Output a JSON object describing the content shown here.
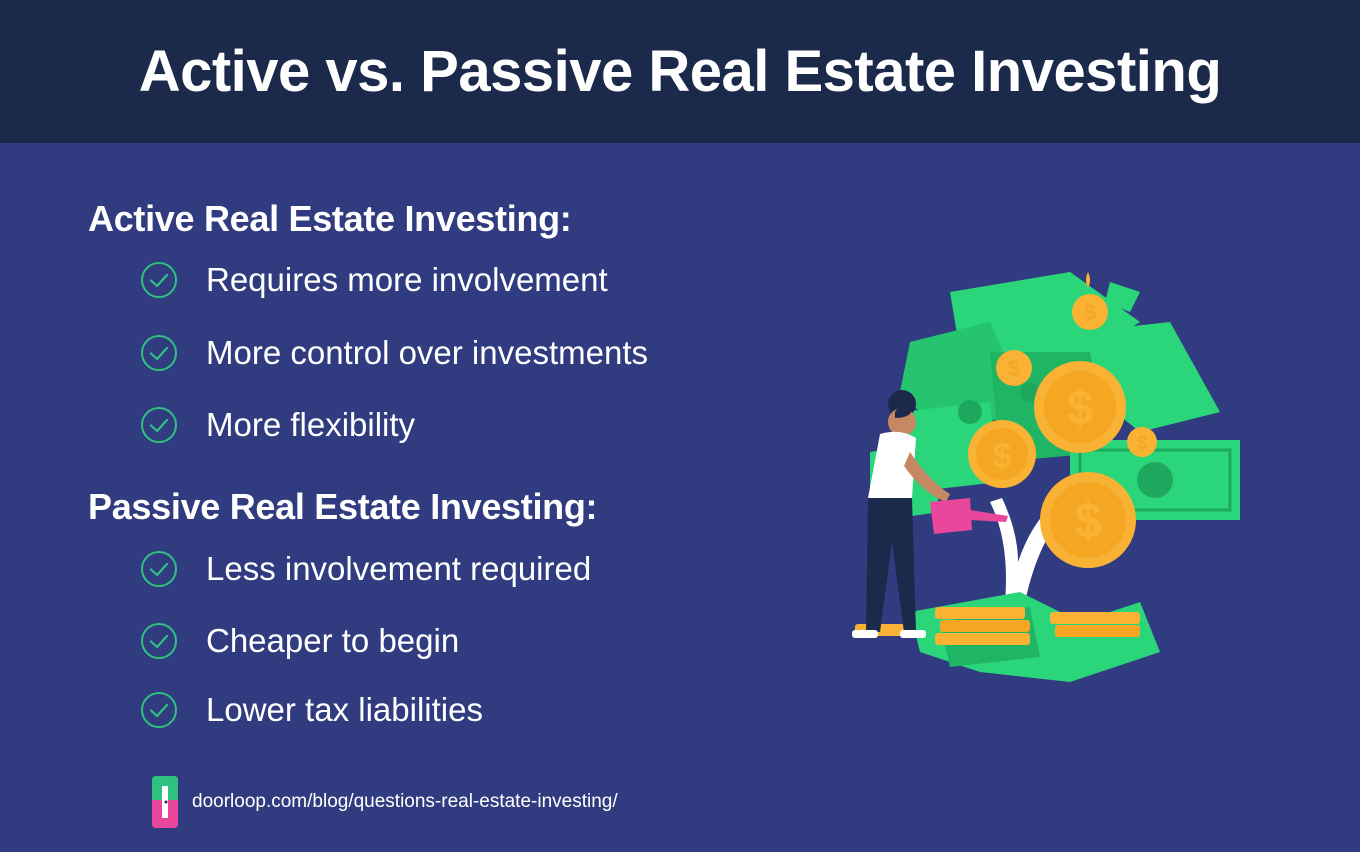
{
  "header": {
    "title": "Active vs. Passive Real Estate Investing"
  },
  "active": {
    "title": "Active Real Estate Investing:",
    "items": [
      "Requires more involvement",
      "More control over investments",
      "More flexibility"
    ]
  },
  "passive": {
    "title": "Passive Real Estate Investing:",
    "items": [
      "Less involvement required",
      "Cheaper to begin",
      "Lower tax liabilities"
    ]
  },
  "footer": {
    "url": "doorloop.com/blog/questions-real-estate-investing/"
  },
  "icons": {
    "check": "check-circle-icon",
    "logo": "doorloop-logo-icon",
    "illustration": "money-tree-illustration"
  },
  "colors": {
    "header_bg": "#1b2a4b",
    "body_bg": "#313c80",
    "check": "#2ec27e",
    "money_green": "#2bd67b",
    "coin_gold": "#f9b233",
    "can_pink": "#e8479b"
  }
}
